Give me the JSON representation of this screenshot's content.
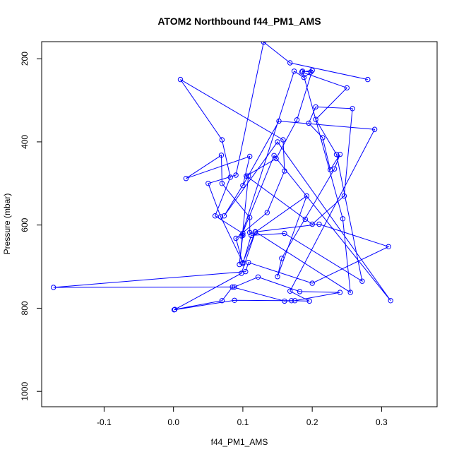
{
  "chart_data": {
    "type": "line",
    "title": "ATOM2 Northbound f44_PM1_AMS",
    "xlabel": "f44_PM1_AMS",
    "ylabel": "Pressure (mbar)",
    "xlim": [
      -0.19,
      0.38
    ],
    "ylim": [
      1037,
      159
    ],
    "y_inverted": true,
    "x_ticks": [
      -0.1,
      0.0,
      0.1,
      0.2,
      0.3
    ],
    "x_tick_labels": [
      "-0.1",
      "0.0",
      "0.1",
      "0.2",
      "0.3"
    ],
    "y_ticks": [
      200,
      400,
      600,
      800,
      1000
    ],
    "y_tick_labels": [
      "200",
      "400",
      "600",
      "800",
      "1000"
    ],
    "grid": false,
    "legend": "none",
    "series": [
      {
        "color": "#0000ff",
        "marker": "open-circle",
        "points": [
          [
            0.002,
            803
          ],
          [
            0.07,
            782
          ],
          [
            0.085,
            749
          ],
          [
            0.16,
            783
          ],
          [
            0.175,
            782
          ],
          [
            0.24,
            762
          ],
          [
            0.182,
            760
          ],
          [
            0.122,
            725
          ],
          [
            0.088,
            749
          ],
          [
            -0.173,
            750
          ],
          [
            0.104,
            712
          ],
          [
            0.108,
            690
          ],
          [
            0.2,
            740
          ],
          [
            0.31,
            652
          ],
          [
            0.21,
            598
          ],
          [
            0.11,
            618
          ],
          [
            0.11,
            582
          ],
          [
            0.07,
            500
          ],
          [
            0.069,
            432
          ],
          [
            0.018,
            488
          ],
          [
            0.11,
            435
          ],
          [
            0.1,
            505
          ],
          [
            0.152,
            350
          ],
          [
            0.29,
            370
          ],
          [
            0.168,
            759
          ],
          [
            0.196,
            783
          ],
          [
            0.17,
            782
          ],
          [
            0.088,
            781
          ],
          [
            0.001,
            804
          ],
          [
            0.098,
            716
          ],
          [
            0.118,
            617
          ],
          [
            0.192,
            530
          ],
          [
            0.15,
            724
          ],
          [
            0.156,
            680
          ],
          [
            0.232,
            465
          ],
          [
            0.24,
            430
          ],
          [
            0.226,
            467
          ],
          [
            0.215,
            390
          ],
          [
            0.195,
            355
          ],
          [
            0.205,
            316
          ],
          [
            0.258,
            320
          ],
          [
            0.246,
            530
          ],
          [
            0.2,
            598
          ],
          [
            0.19,
            586
          ],
          [
            0.105,
            482
          ],
          [
            0.148,
            440
          ],
          [
            0.178,
            347
          ],
          [
            0.2,
            228
          ],
          [
            0.185,
            232
          ],
          [
            0.25,
            270
          ],
          [
            0.205,
            346
          ],
          [
            0.235,
            430
          ],
          [
            0.272,
            735
          ],
          [
            0.16,
            620
          ],
          [
            0.112,
            625
          ],
          [
            0.1,
            693
          ],
          [
            0.09,
            632
          ],
          [
            0.135,
            570
          ],
          [
            0.16,
            470
          ],
          [
            0.158,
            395
          ],
          [
            0.01,
            250
          ],
          [
            0.07,
            395
          ],
          [
            0.082,
            485
          ],
          [
            0.06,
            578
          ],
          [
            0.1,
            620
          ],
          [
            0.1,
            625
          ],
          [
            0.095,
            695
          ],
          [
            0.108,
            482
          ],
          [
            0.073,
            578
          ],
          [
            0.15,
            400
          ],
          [
            0.313,
            782
          ],
          [
            0.145,
            433
          ],
          [
            0.098,
            626
          ],
          [
            0.174,
            230
          ],
          [
            0.188,
            245
          ],
          [
            0.198,
            232
          ],
          [
            0.186,
            230
          ],
          [
            0.244,
            585
          ],
          [
            0.255,
            762
          ],
          [
            0.118,
            616
          ],
          [
            0.1,
            690
          ],
          [
            0.068,
            580
          ],
          [
            0.05,
            500
          ],
          [
            0.09,
            480
          ],
          [
            0.13,
            160
          ],
          [
            0.168,
            210
          ],
          [
            0.28,
            250
          ]
        ]
      }
    ]
  }
}
